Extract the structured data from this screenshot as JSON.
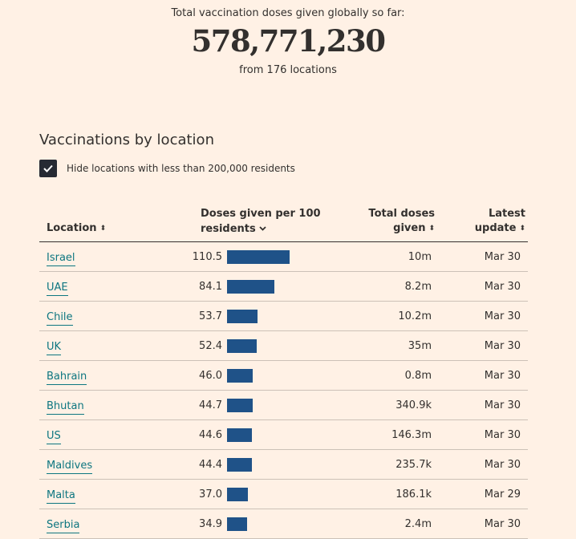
{
  "hero": {
    "label": "Total vaccination doses given globally so far:",
    "total": "578,771,230",
    "sub": "from 176 locations"
  },
  "section": {
    "title": "Vaccinations by location",
    "filter_label": "Hide locations with less than 200,000 residents",
    "filter_checked": true
  },
  "table": {
    "headers": {
      "location": "Location",
      "doses_per_100_line1": "Doses given per 100",
      "doses_per_100_line2": "residents",
      "total_line1": "Total doses",
      "total_line2": "given",
      "update_line1": "Latest",
      "update_line2": "update"
    },
    "sort": {
      "active_column": "doses_per_100",
      "direction": "descending"
    },
    "bar_color": "#1f5288",
    "link_color": "#0d7680",
    "rows": [
      {
        "location": "Israel",
        "rate": "110.5",
        "rate_value": 110.5,
        "total": "10m",
        "date": "Mar 30"
      },
      {
        "location": "UAE",
        "rate": "84.1",
        "rate_value": 84.1,
        "total": "8.2m",
        "date": "Mar 30"
      },
      {
        "location": "Chile",
        "rate": "53.7",
        "rate_value": 53.7,
        "total": "10.2m",
        "date": "Mar 30"
      },
      {
        "location": "UK",
        "rate": "52.4",
        "rate_value": 52.4,
        "total": "35m",
        "date": "Mar 30"
      },
      {
        "location": "Bahrain",
        "rate": "46.0",
        "rate_value": 46.0,
        "total": "0.8m",
        "date": "Mar 30"
      },
      {
        "location": "Bhutan",
        "rate": "44.7",
        "rate_value": 44.7,
        "total": "340.9k",
        "date": "Mar 30"
      },
      {
        "location": "US",
        "rate": "44.6",
        "rate_value": 44.6,
        "total": "146.3m",
        "date": "Mar 30"
      },
      {
        "location": "Maldives",
        "rate": "44.4",
        "rate_value": 44.4,
        "total": "235.7k",
        "date": "Mar 30"
      },
      {
        "location": "Malta",
        "rate": "37.0",
        "rate_value": 37.0,
        "total": "186.1k",
        "date": "Mar 29"
      },
      {
        "location": "Serbia",
        "rate": "34.9",
        "rate_value": 34.9,
        "total": "2.4m",
        "date": "Mar 30"
      }
    ]
  }
}
